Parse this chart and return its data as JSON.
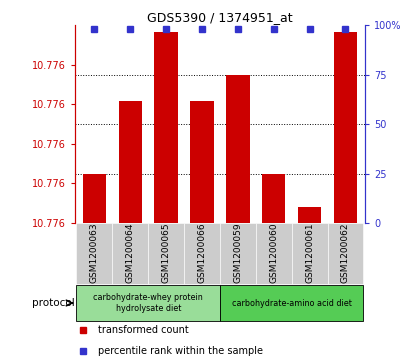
{
  "title": "GDS5390 / 1374951_at",
  "samples": [
    "GSM1200063",
    "GSM1200064",
    "GSM1200065",
    "GSM1200066",
    "GSM1200059",
    "GSM1200060",
    "GSM1200061",
    "GSM1200062"
  ],
  "bar_values": [
    10.77615,
    10.77637,
    10.77658,
    10.77637,
    10.77645,
    10.77615,
    10.77605,
    10.77658
  ],
  "percentile_values": [
    98,
    98,
    98,
    98,
    98,
    98,
    98,
    98
  ],
  "bar_color": "#cc0000",
  "percentile_color": "#3333cc",
  "ymin": 10.776,
  "ymax": 10.7766,
  "ytick_values": [
    10.776,
    10.776,
    10.776,
    10.776,
    10.776
  ],
  "ytick_positions": [
    10.776,
    10.77612,
    10.77624,
    10.77636,
    10.77648
  ],
  "right_yticks": [
    0,
    25,
    50,
    75,
    100
  ],
  "protocol_groups": [
    {
      "label": "carbohydrate-whey protein\nhydrolysate diet",
      "indices": [
        0,
        1,
        2,
        3
      ],
      "color": "#99dd99"
    },
    {
      "label": "carbohydrate-amino acid diet",
      "indices": [
        4,
        5,
        6,
        7
      ],
      "color": "#55cc55"
    }
  ],
  "protocol_label": "protocol",
  "legend_items": [
    {
      "label": "transformed count",
      "color": "#cc0000"
    },
    {
      "label": "percentile rank within the sample",
      "color": "#3333cc"
    }
  ],
  "ylabel_left_color": "#cc0000",
  "ylabel_right_color": "#3333cc",
  "background_color": "#ffffff",
  "gray_bg": "#cccccc"
}
